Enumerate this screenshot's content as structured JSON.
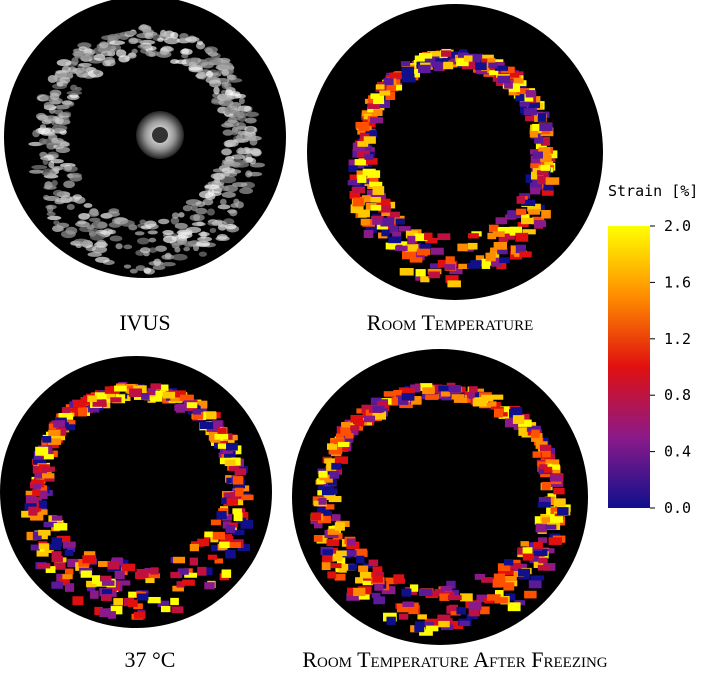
{
  "panels": [
    {
      "label": "IVUS"
    },
    {
      "label": "Room Temperature"
    },
    {
      "label": "37 °C"
    },
    {
      "label": "Room Temperature After Freezing"
    }
  ],
  "colorbar": {
    "title": "Strain [%]",
    "lim": [
      0,
      2
    ],
    "ticks": [
      {
        "value": 0,
        "label": "0.0"
      },
      {
        "value": 0.4,
        "label": "0.4"
      },
      {
        "value": 0.8,
        "label": "0.8"
      },
      {
        "value": 1.2,
        "label": "1.2"
      },
      {
        "value": 1.6,
        "label": "1.6"
      },
      {
        "value": 2,
        "label": "2.0"
      }
    ]
  }
}
